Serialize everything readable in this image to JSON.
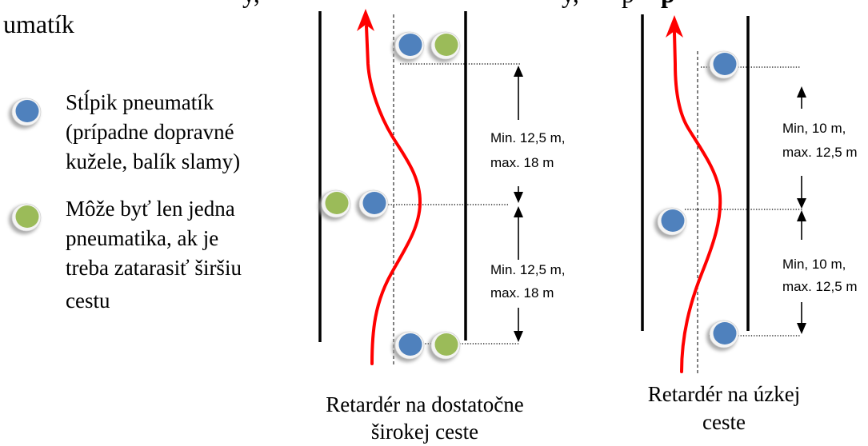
{
  "page": {
    "heading_fragment": "umatík",
    "top_cut_fragments": [
      "y,",
      "y,",
      "p",
      "p"
    ]
  },
  "legend": {
    "items": [
      {
        "marker": "tire-stack-icon",
        "lines": [
          "Stĺpik pneumatík",
          "(prípadne dopravné",
          "kužele, balík slamy)"
        ]
      },
      {
        "marker": "single-tire-icon",
        "lines": [
          "Môže byť len jedna",
          "pneumatika, ak je",
          "treba zatarasiť širšiu",
          "cestu"
        ]
      }
    ]
  },
  "wide_road": {
    "spacing_labels": [
      {
        "min": "Min. 12,5 m,",
        "max": "max. 18 m"
      },
      {
        "min": "Min. 12,5 m,",
        "max": "max. 18 m"
      }
    ],
    "caption": [
      "Retardér na dostatočne",
      "širokej ceste"
    ]
  },
  "narrow_road": {
    "spacing_labels": [
      {
        "min": "Min, 10 m,",
        "max": "max. 12,5 m"
      },
      {
        "min": "Min, 10 m,",
        "max": "max. 12,5 m"
      }
    ],
    "caption": [
      "Retardér na úzkej",
      "ceste"
    ]
  },
  "colors": {
    "tire_stack": "#4f81bd",
    "single_tire": "#9bbb59",
    "tire_rim": "#f4f4f4",
    "tire_shadow": "#9c9c9c",
    "driving_path": "#ff0000"
  }
}
